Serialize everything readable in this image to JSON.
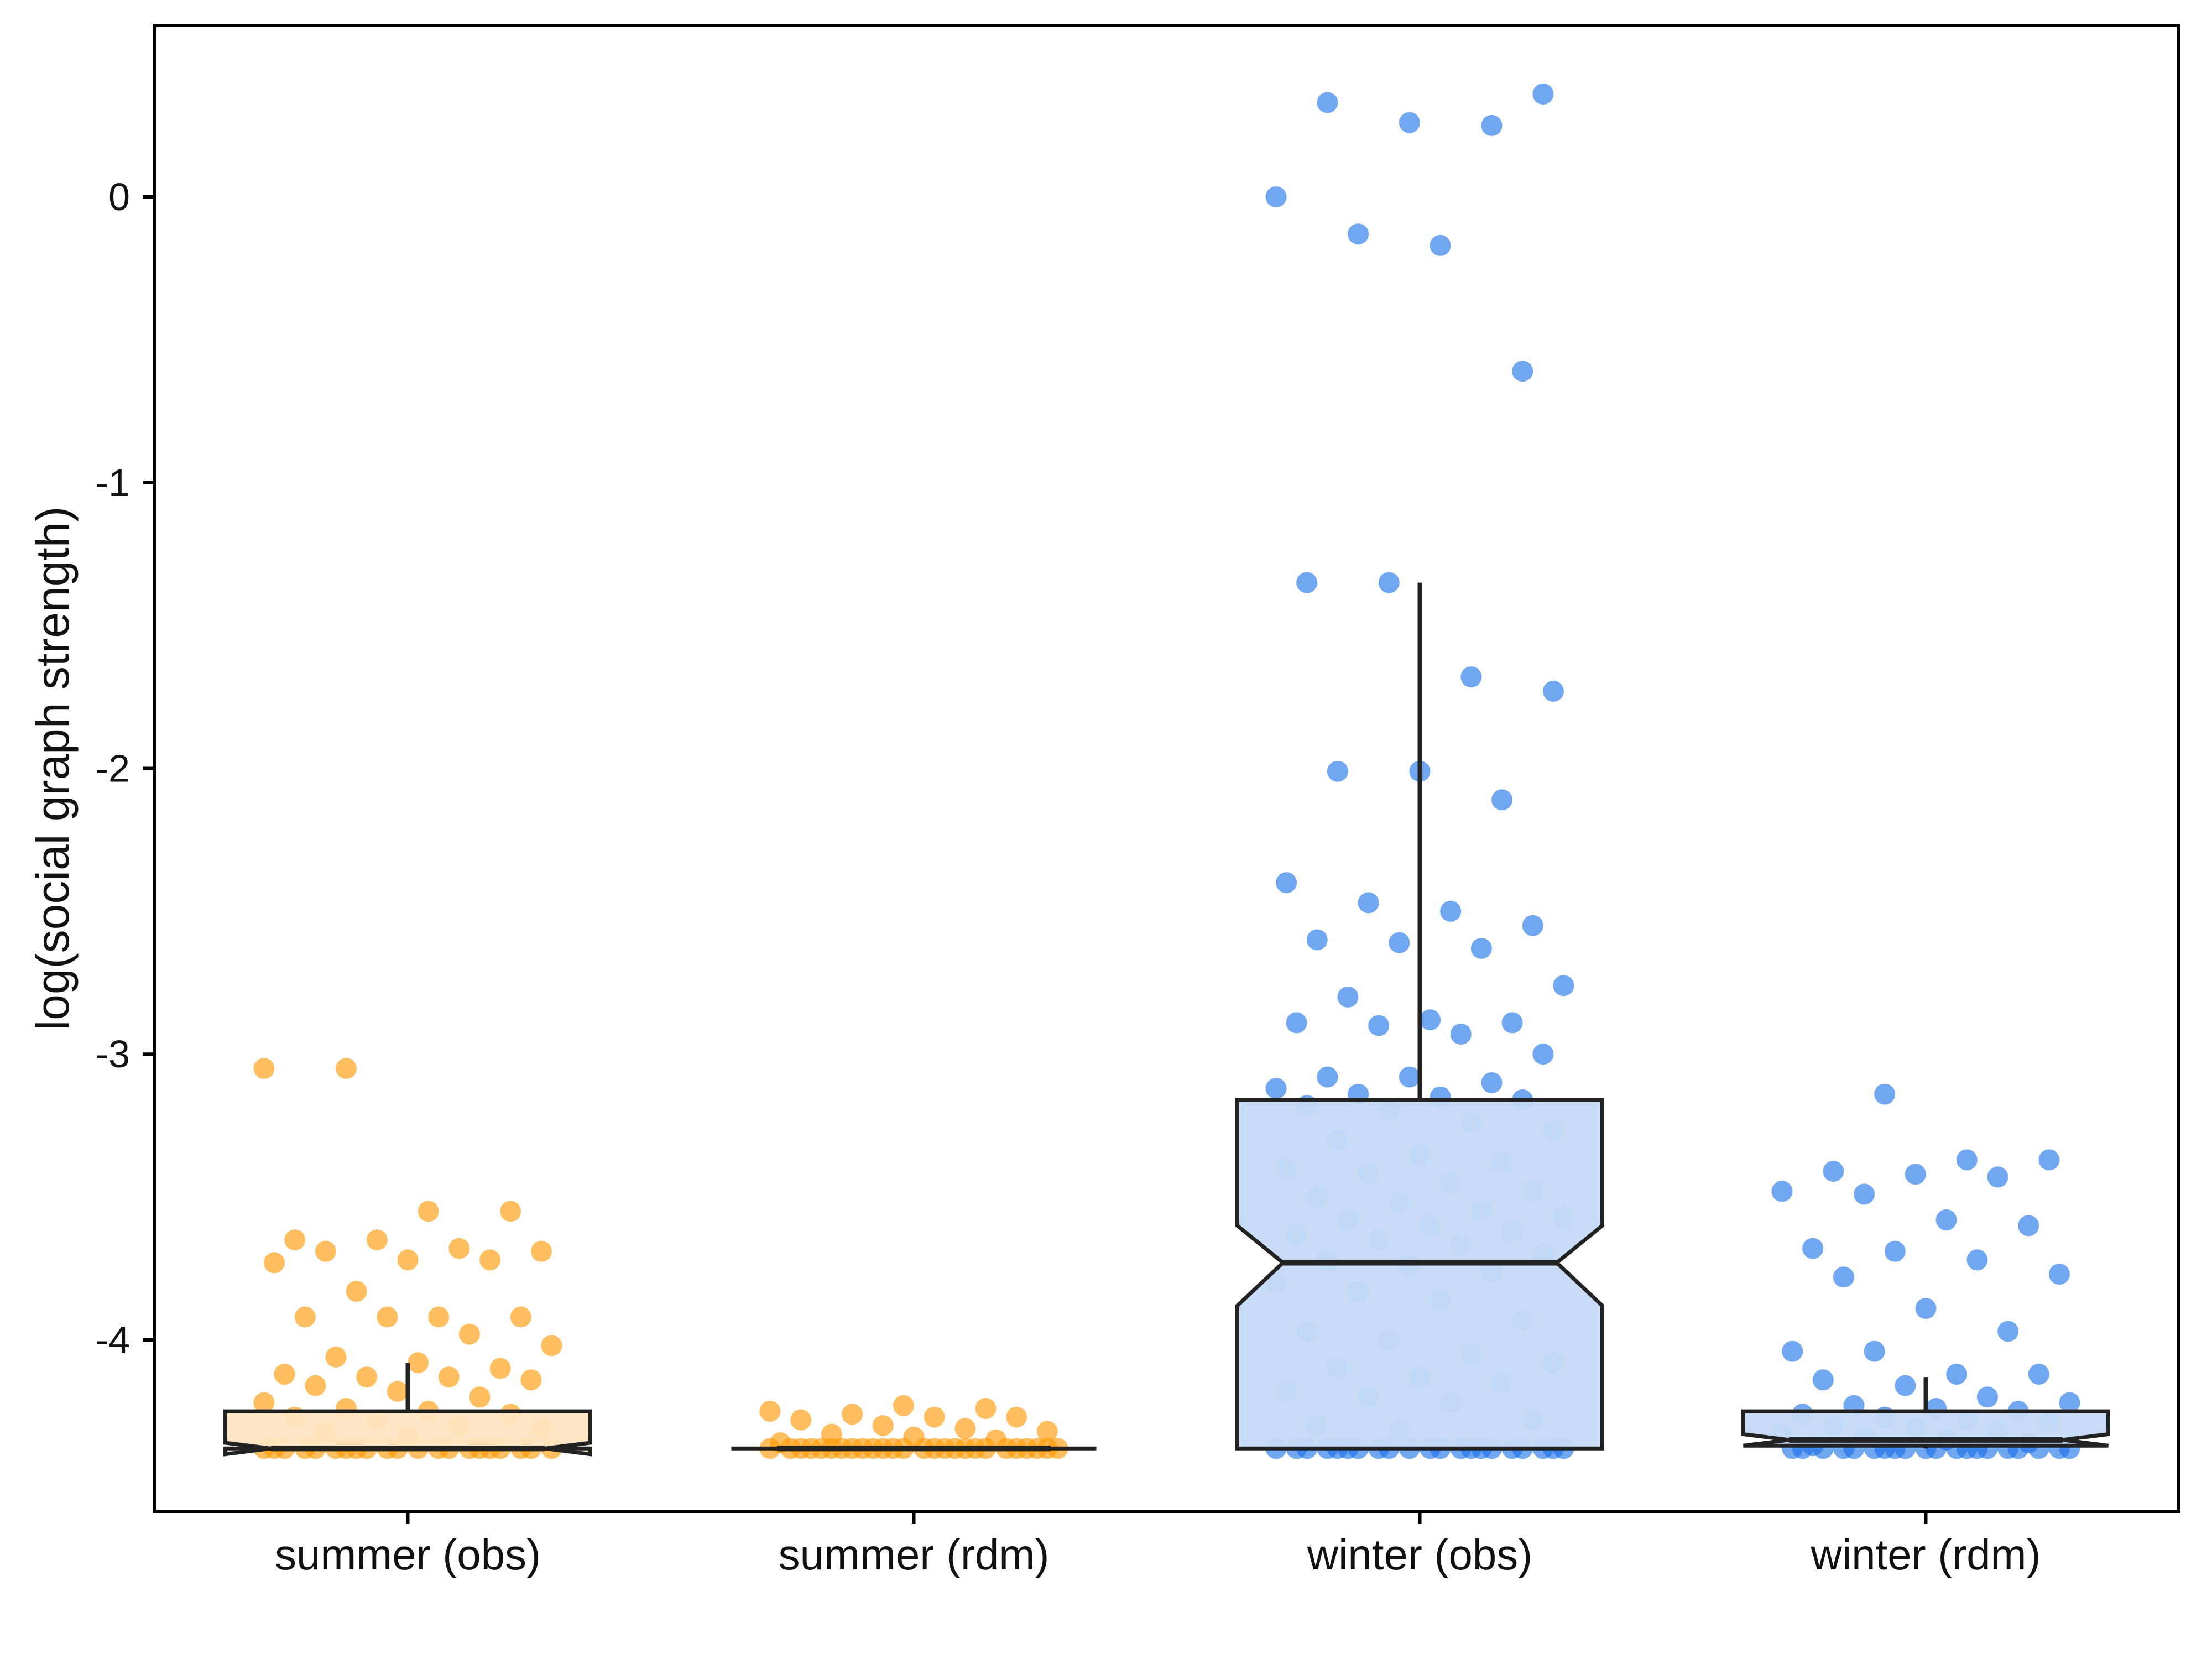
{
  "chart_data": {
    "type": "box",
    "ylabel": "log(social graph strength)",
    "xlabel": "",
    "ylim": [
      -4.6,
      0.6
    ],
    "yticks": [
      0,
      -1,
      -2,
      -3,
      -4
    ],
    "ytick_labels": [
      "0",
      "-1",
      "-2",
      "-3",
      "-4"
    ],
    "categories": [
      "summer (obs)",
      "summer (rdm)",
      "winter (obs)",
      "winter (rdm)"
    ],
    "grid": false,
    "legend": "none",
    "colors": {
      "summer_point": "#FF9800",
      "summer_box": "#FFE5C2",
      "winter_point": "#1A6FE8",
      "winter_box": "#C6DAF7",
      "outline": "#222222"
    },
    "boxes": [
      {
        "category": "summer (obs)",
        "q1": -4.38,
        "median": -4.38,
        "q3": -4.25,
        "whisker_low": -4.38,
        "whisker_high": -4.08,
        "notch_low": -4.4,
        "notch_high": -4.36,
        "color": "summer"
      },
      {
        "category": "summer (rdm)",
        "q1": -4.38,
        "median": -4.38,
        "q3": -4.38,
        "whisker_low": -4.38,
        "whisker_high": -4.38,
        "notch_low": -4.38,
        "notch_high": -4.38,
        "color": "summer"
      },
      {
        "category": "winter (obs)",
        "q1": -4.38,
        "median": -3.73,
        "q3": -3.16,
        "whisker_low": -4.38,
        "whisker_high": -1.35,
        "notch_low": -3.88,
        "notch_high": -3.6,
        "color": "winter"
      },
      {
        "category": "winter (rdm)",
        "q1": -4.37,
        "median": -4.35,
        "q3": -4.25,
        "whisker_low": -4.38,
        "whisker_high": -4.13,
        "notch_low": -4.37,
        "notch_high": -4.33,
        "color": "winter"
      }
    ],
    "points": [
      {
        "category": "summer (obs)",
        "color": "summer",
        "values": [
          -3.05,
          -3.05,
          -3.55,
          -3.55,
          -3.65,
          -3.65,
          -3.68,
          -3.69,
          -3.69,
          -3.72,
          -3.72,
          -3.73,
          -3.83,
          -3.92,
          -3.92,
          -3.92,
          -3.92,
          -3.98,
          -4.02,
          -4.06,
          -4.08,
          -4.1,
          -4.12,
          -4.13,
          -4.13,
          -4.14,
          -4.16,
          -4.18,
          -4.2,
          -4.22,
          -4.24,
          -4.25,
          -4.26,
          -4.27,
          -4.28,
          -4.3,
          -4.31,
          -4.32,
          -4.34,
          -4.38,
          -4.38,
          -4.38,
          -4.38,
          -4.38,
          -4.38,
          -4.38,
          -4.38,
          -4.38,
          -4.38,
          -4.38,
          -4.38,
          -4.38,
          -4.38,
          -4.38,
          -4.38,
          -4.38,
          -4.38,
          -4.38,
          -4.38,
          -4.38
        ]
      },
      {
        "category": "summer (rdm)",
        "color": "summer",
        "values": [
          -4.23,
          -4.24,
          -4.25,
          -4.26,
          -4.27,
          -4.27,
          -4.28,
          -4.3,
          -4.31,
          -4.32,
          -4.33,
          -4.34,
          -4.35,
          -4.36,
          -4.38,
          -4.38,
          -4.38,
          -4.38,
          -4.38,
          -4.38,
          -4.38,
          -4.38,
          -4.38,
          -4.38,
          -4.38,
          -4.38,
          -4.38,
          -4.38,
          -4.38,
          -4.38,
          -4.38,
          -4.38,
          -4.38,
          -4.38,
          -4.38,
          -4.38,
          -4.38,
          -4.38,
          -4.38,
          -4.38
        ]
      },
      {
        "category": "winter (obs)",
        "color": "winter",
        "values": [
          0.36,
          0.33,
          0.26,
          0.25,
          0.0,
          -0.13,
          -0.17,
          -0.61,
          -1.35,
          -1.35,
          -1.68,
          -1.73,
          -2.01,
          -2.01,
          -2.11,
          -2.4,
          -2.47,
          -2.5,
          -2.55,
          -2.6,
          -2.61,
          -2.63,
          -2.76,
          -2.8,
          -2.88,
          -2.89,
          -2.89,
          -2.9,
          -2.93,
          -3.0,
          -3.08,
          -3.08,
          -3.1,
          -3.12,
          -3.14,
          -3.15,
          -3.16,
          -3.18,
          -3.2,
          -3.24,
          -3.27,
          -3.3,
          -3.35,
          -3.38,
          -3.4,
          -3.42,
          -3.45,
          -3.48,
          -3.5,
          -3.52,
          -3.55,
          -3.57,
          -3.58,
          -3.6,
          -3.62,
          -3.63,
          -3.65,
          -3.67,
          -3.7,
          -3.72,
          -3.74,
          -3.76,
          -3.8,
          -3.83,
          -3.86,
          -3.93,
          -3.97,
          -4.0,
          -4.05,
          -4.08,
          -4.1,
          -4.13,
          -4.15,
          -4.18,
          -4.2,
          -4.22,
          -4.28,
          -4.3,
          -4.32,
          -4.38,
          -4.38,
          -4.38,
          -4.38,
          -4.38,
          -4.38,
          -4.38,
          -4.38,
          -4.38,
          -4.38,
          -4.38,
          -4.38,
          -4.38,
          -4.38,
          -4.38,
          -4.38,
          -4.38,
          -4.38,
          -4.38,
          -4.38,
          -4.38
        ]
      },
      {
        "category": "winter (rdm)",
        "color": "winter",
        "values": [
          -3.14,
          -3.37,
          -3.37,
          -3.41,
          -3.42,
          -3.43,
          -3.48,
          -3.49,
          -3.58,
          -3.6,
          -3.68,
          -3.69,
          -3.72,
          -3.77,
          -3.78,
          -3.89,
          -3.97,
          -4.04,
          -4.04,
          -4.12,
          -4.12,
          -4.14,
          -4.16,
          -4.2,
          -4.22,
          -4.23,
          -4.24,
          -4.25,
          -4.26,
          -4.27,
          -4.28,
          -4.29,
          -4.3,
          -4.31,
          -4.32,
          -4.33,
          -4.34,
          -4.35,
          -4.36,
          -4.37,
          -4.38,
          -4.38,
          -4.38,
          -4.38,
          -4.38,
          -4.38,
          -4.38,
          -4.38,
          -4.38,
          -4.38,
          -4.38,
          -4.38,
          -4.38,
          -4.38,
          -4.38,
          -4.38,
          -4.38,
          -4.38,
          -4.38,
          -4.38
        ]
      }
    ]
  }
}
